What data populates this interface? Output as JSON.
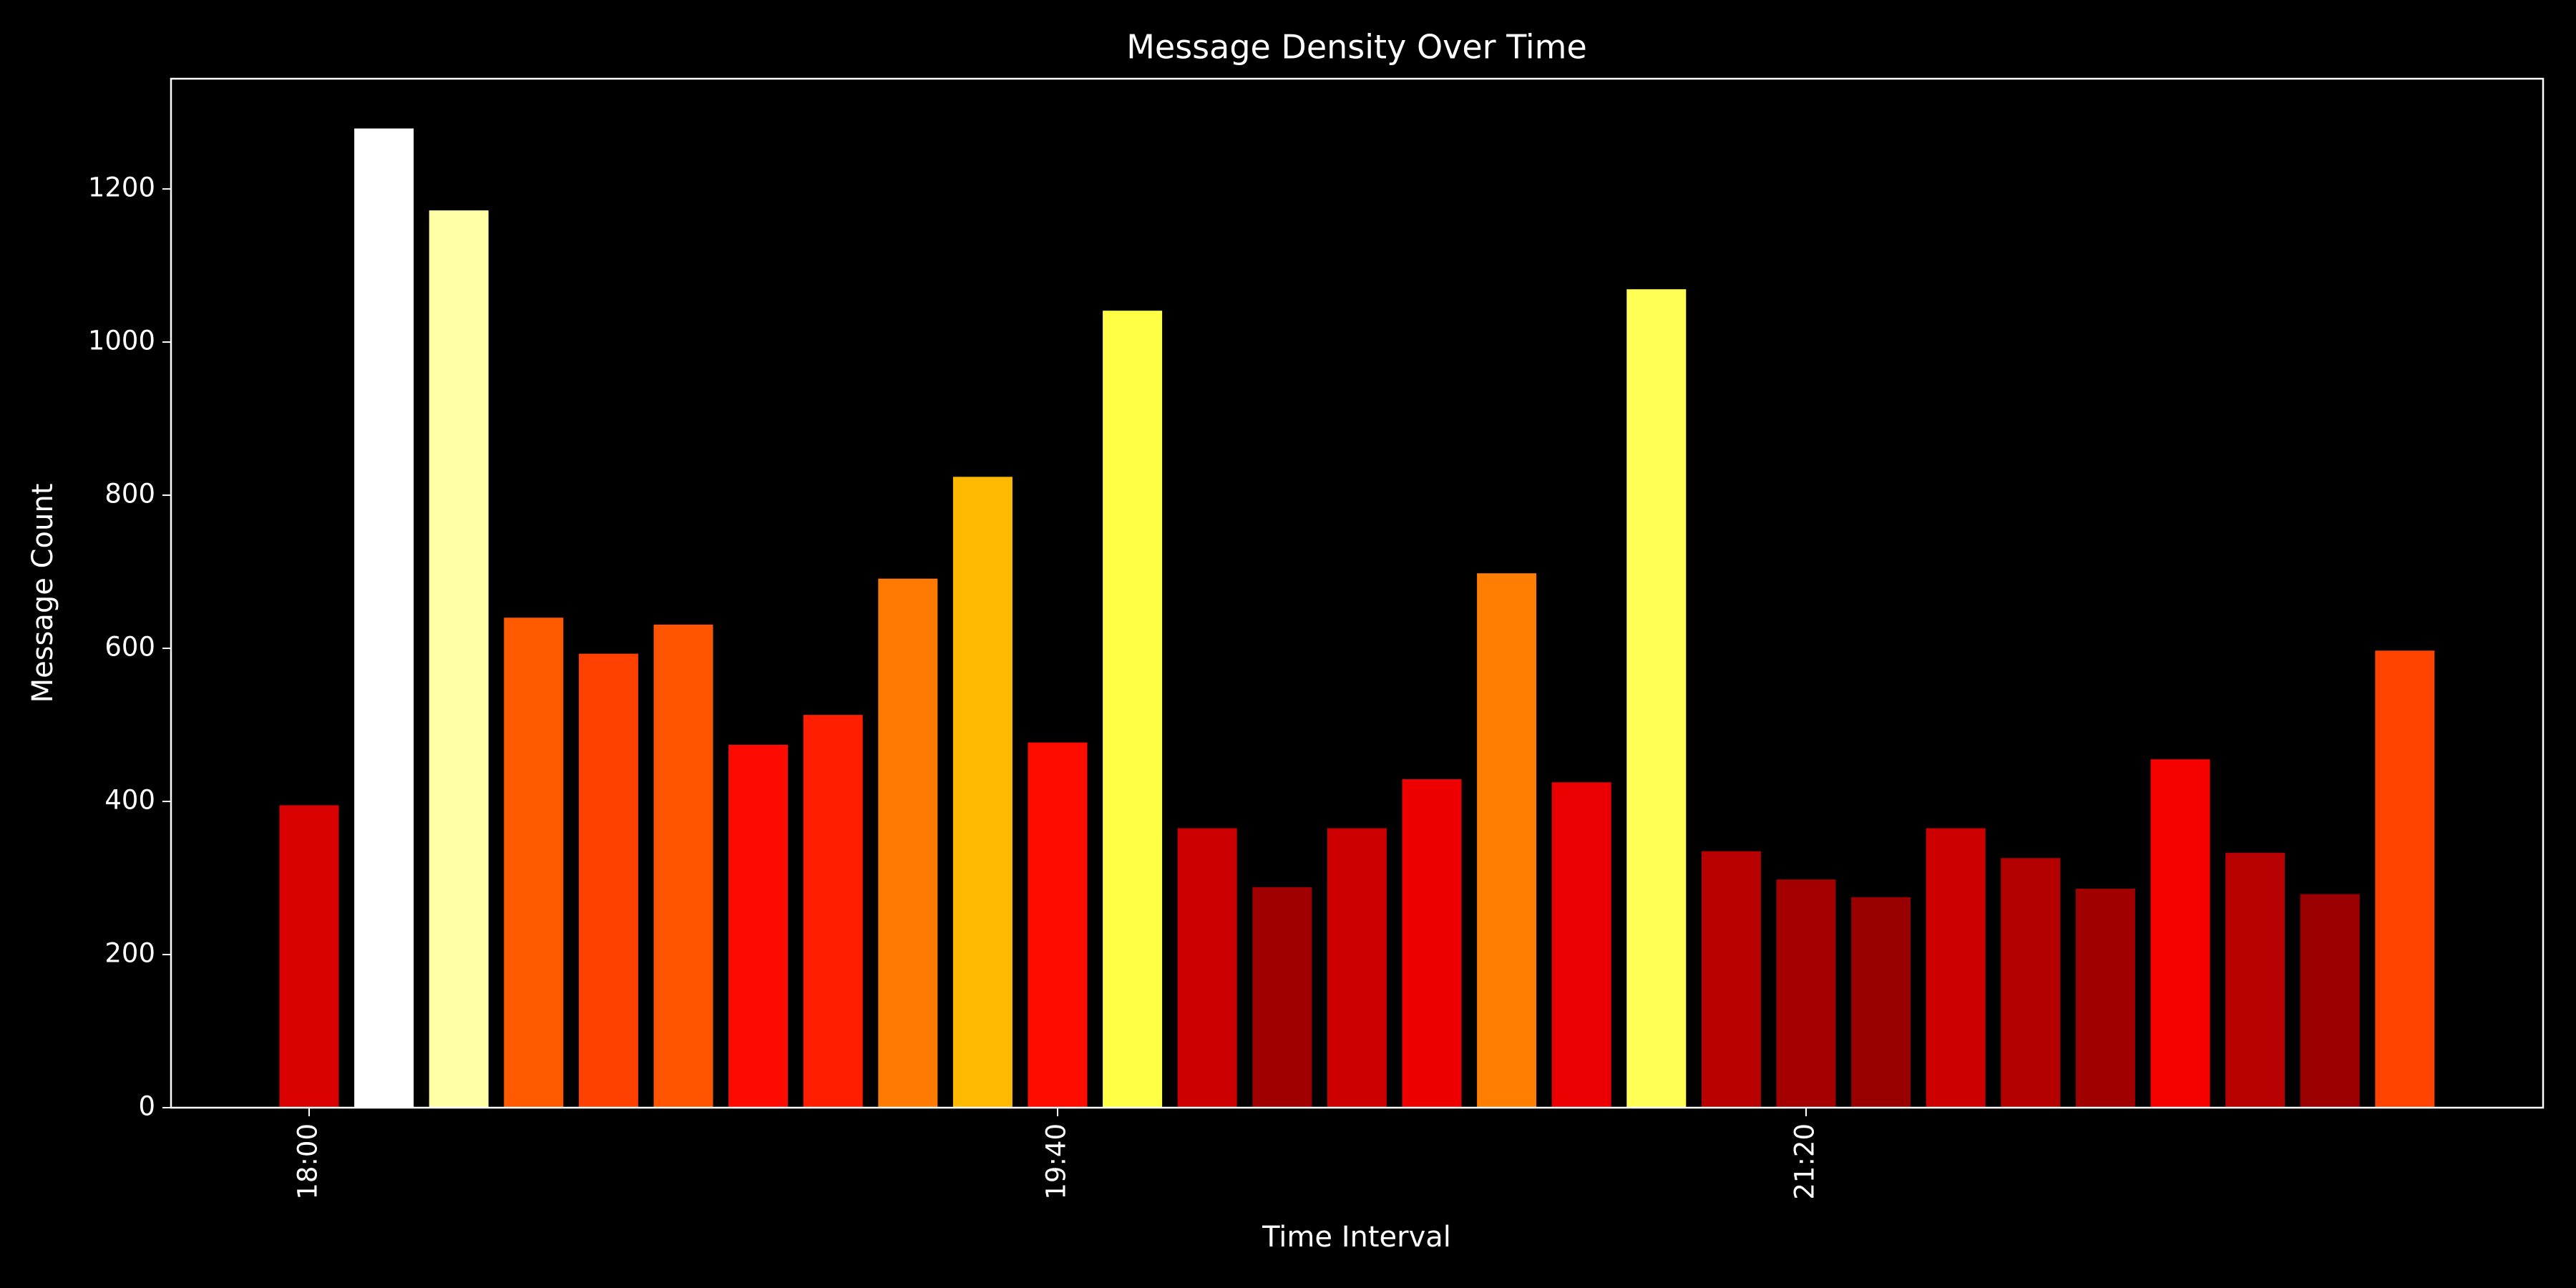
{
  "chart_data": {
    "type": "bar",
    "title": "Message Density Over Time",
    "x_label": "Time Interval",
    "y_label": "Message Count",
    "categories": [
      "18:00",
      null,
      null,
      null,
      null,
      null,
      null,
      null,
      null,
      null,
      "19:40",
      null,
      null,
      null,
      null,
      null,
      null,
      null,
      null,
      null,
      "21:20",
      null,
      null,
      null,
      null,
      null,
      null,
      null,
      null
    ],
    "values": [
      395,
      1279,
      1172,
      640,
      593,
      631,
      474,
      513,
      691,
      824,
      477,
      1041,
      365,
      288,
      365,
      429,
      698,
      425,
      1069,
      335,
      298,
      275,
      365,
      326,
      286,
      455,
      333,
      279,
      597
    ],
    "colors": [
      "#d90000",
      "#ffffff",
      "#ffffa6",
      "#ff5a00",
      "#ff4100",
      "#ff5500",
      "#ff0a00",
      "#ff1e00",
      "#ff7a00",
      "#ffba00",
      "#ff0c00",
      "#ffff45",
      "#cc0000",
      "#a00000",
      "#cc0000",
      "#ee0000",
      "#ff7d00",
      "#ea0000",
      "#ffff55",
      "#b80000",
      "#a50000",
      "#980000",
      "#cc0000",
      "#b50000",
      "#a00000",
      "#f70000",
      "#b70000",
      "#9c0000",
      "#ff4400"
    ],
    "ylim": [
      0,
      1344
    ],
    "yticks": [
      0,
      200,
      400,
      600,
      800,
      1000,
      1200
    ]
  }
}
